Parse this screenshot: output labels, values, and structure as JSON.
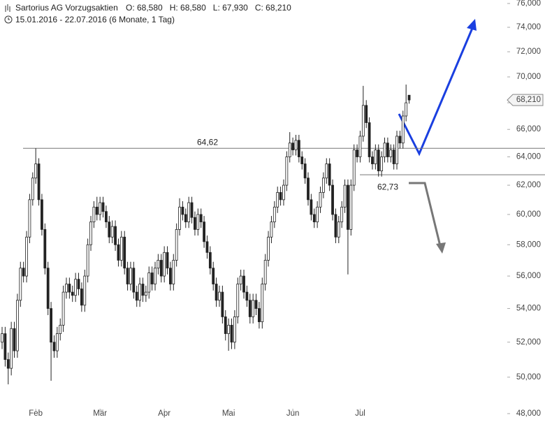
{
  "chart_data": {
    "type": "candlestick",
    "title": "Sartorius AG Vorzugsaktien",
    "quote_labels": [
      "O: 68,580",
      "H: 68,580",
      "L: 67,930",
      "C: 68,210"
    ],
    "subtitle": "15.01.2016 - 22.07.2016 (6 Monate, 1 Tag)",
    "log_scale": true,
    "ylim": [
      48,
      76
    ],
    "yticks": [
      {
        "value": 48,
        "label": "48,000"
      },
      {
        "value": 50,
        "label": "50,000"
      },
      {
        "value": 52,
        "label": "52,000"
      },
      {
        "value": 54,
        "label": "54,000"
      },
      {
        "value": 56,
        "label": "56,000"
      },
      {
        "value": 58,
        "label": "58,000"
      },
      {
        "value": 60,
        "label": "60,000"
      },
      {
        "value": 62,
        "label": "62,000"
      },
      {
        "value": 64,
        "label": "64,000"
      },
      {
        "value": 66,
        "label": "66,000"
      },
      {
        "value": 68,
        "label": "68,000"
      },
      {
        "value": 70,
        "label": "70,000"
      },
      {
        "value": 72,
        "label": "72,000"
      },
      {
        "value": 74,
        "label": "74,000"
      },
      {
        "value": 76,
        "label": "76,000"
      }
    ],
    "categories": [
      null,
      null,
      null,
      null,
      null,
      null,
      null,
      null,
      null,
      null,
      null,
      "Feb",
      null,
      null,
      null,
      null,
      null,
      null,
      null,
      null,
      null,
      null,
      null,
      null,
      null,
      null,
      null,
      null,
      null,
      null,
      null,
      null,
      "Mär",
      null,
      null,
      null,
      null,
      null,
      null,
      null,
      null,
      null,
      null,
      null,
      null,
      null,
      null,
      null,
      null,
      null,
      null,
      null,
      null,
      "Apr",
      null,
      null,
      null,
      null,
      null,
      null,
      null,
      null,
      null,
      null,
      null,
      null,
      null,
      null,
      null,
      null,
      null,
      null,
      null,
      null,
      "Mai",
      null,
      null,
      null,
      null,
      null,
      null,
      null,
      null,
      null,
      null,
      null,
      null,
      null,
      null,
      null,
      null,
      null,
      null,
      null,
      null,
      "Jun",
      null,
      null,
      null,
      null,
      null,
      null,
      null,
      null,
      null,
      null,
      null,
      null,
      null,
      null,
      null,
      null,
      null,
      null,
      null,
      null,
      null,
      "Jul",
      null,
      null,
      null,
      null,
      null,
      null,
      null,
      null,
      null,
      null,
      null,
      null,
      null,
      null,
      null,
      null
    ],
    "open": [
      52.0,
      52.5,
      51.0,
      50.5,
      52.8,
      51.5,
      54.5,
      56.5,
      56.0,
      58.5,
      61.0,
      62.5,
      63.5,
      61.0,
      59.0,
      56.5,
      54.0,
      52.0,
      51.5,
      52.5,
      53.0,
      55.0,
      55.5,
      55.0,
      54.8,
      55.8,
      55.2,
      54.2,
      56.0,
      58.0,
      59.5,
      60.5,
      60.0,
      60.8,
      60.2,
      59.5,
      58.5,
      59.2,
      58.0,
      57.0,
      58.5,
      56.5,
      55.5,
      56.5,
      55.0,
      54.5,
      55.5,
      54.8,
      55.0,
      56.2,
      55.5,
      56.5,
      57.0,
      56.0,
      57.5,
      56.5,
      55.5,
      57.0,
      59.0,
      60.5,
      60.0,
      59.5,
      60.8,
      59.8,
      59.0,
      60.0,
      59.5,
      58.2,
      57.5,
      56.5,
      55.5,
      54.5,
      55.0,
      53.5,
      52.5,
      53.0,
      52.0,
      53.5,
      55.5,
      56.0,
      55.0,
      54.5,
      53.5,
      54.5,
      54.0,
      53.2,
      55.5,
      57.0,
      58.5,
      59.5,
      60.5,
      61.5,
      61.0,
      62.0,
      64.0,
      65.0,
      64.5,
      65.2,
      64.0,
      63.5,
      62.5,
      61.0,
      60.0,
      59.5,
      60.5,
      61.5,
      62.5,
      63.5,
      62.0,
      60.0,
      58.5,
      59.5,
      60.5,
      62.0,
      59.0,
      62.0,
      64.5,
      64.0,
      65.5,
      67.8,
      66.5,
      64.0,
      63.5,
      64.5,
      63.0,
      64.0,
      65.0,
      64.0,
      64.5,
      63.5,
      65.5,
      65.0,
      67.0,
      68.58
    ],
    "high": [
      52.9,
      52.9,
      51.4,
      53.2,
      53.2,
      54.9,
      56.9,
      56.9,
      58.9,
      61.4,
      62.9,
      64.62,
      63.9,
      61.4,
      59.4,
      56.9,
      54.4,
      52.4,
      52.9,
      53.4,
      55.4,
      55.9,
      55.9,
      55.4,
      56.2,
      56.2,
      55.6,
      56.4,
      58.4,
      59.9,
      60.9,
      61.2,
      61.2,
      61.2,
      60.6,
      59.9,
      59.6,
      59.6,
      58.4,
      58.9,
      58.9,
      56.9,
      56.9,
      56.9,
      55.4,
      55.9,
      55.9,
      55.4,
      56.6,
      56.6,
      56.9,
      57.4,
      57.4,
      57.9,
      57.9,
      56.9,
      57.4,
      59.4,
      61.1,
      60.9,
      60.4,
      61.2,
      61.2,
      60.2,
      60.4,
      60.4,
      59.9,
      58.6,
      57.9,
      56.9,
      55.9,
      55.4,
      55.4,
      53.9,
      53.4,
      53.4,
      53.9,
      55.9,
      56.4,
      56.4,
      55.4,
      54.9,
      54.9,
      54.9,
      54.4,
      55.9,
      57.4,
      58.9,
      59.9,
      60.9,
      61.9,
      61.9,
      62.4,
      64.4,
      65.8,
      65.4,
      65.6,
      65.6,
      64.4,
      63.9,
      62.9,
      61.4,
      60.4,
      60.9,
      61.9,
      62.9,
      63.9,
      63.9,
      62.4,
      60.4,
      59.9,
      60.9,
      62.4,
      62.4,
      62.4,
      64.9,
      64.9,
      65.9,
      69.3,
      68.2,
      66.9,
      64.4,
      64.9,
      64.9,
      64.4,
      65.4,
      65.4,
      64.9,
      64.9,
      65.9,
      65.9,
      67.4,
      69.4,
      68.58
    ],
    "low": [
      51.6,
      50.6,
      49.6,
      50.1,
      51.1,
      51.1,
      54.1,
      55.6,
      55.6,
      58.1,
      60.6,
      62.1,
      60.6,
      58.6,
      56.1,
      53.6,
      49.8,
      51.1,
      51.1,
      52.1,
      52.6,
      54.6,
      54.6,
      54.4,
      54.4,
      54.8,
      53.8,
      53.8,
      55.6,
      57.6,
      59.1,
      59.6,
      59.6,
      59.8,
      59.1,
      58.1,
      58.1,
      57.6,
      56.6,
      56.6,
      56.1,
      55.1,
      55.1,
      54.6,
      54.1,
      54.1,
      54.4,
      54.4,
      54.6,
      55.1,
      55.1,
      56.1,
      55.6,
      55.6,
      56.1,
      55.1,
      55.1,
      56.6,
      58.6,
      59.6,
      59.1,
      59.1,
      59.4,
      58.6,
      58.6,
      59.1,
      57.8,
      57.1,
      56.1,
      55.1,
      54.1,
      54.1,
      53.1,
      52.1,
      51.5,
      51.6,
      51.6,
      53.1,
      55.1,
      54.6,
      54.1,
      53.1,
      53.1,
      53.6,
      52.8,
      52.8,
      55.1,
      56.6,
      58.1,
      59.1,
      60.1,
      60.6,
      60.6,
      61.6,
      63.6,
      64.1,
      64.1,
      63.6,
      63.1,
      62.1,
      60.6,
      59.6,
      59.1,
      59.1,
      60.1,
      61.1,
      62.1,
      61.6,
      59.6,
      58.1,
      58.1,
      59.1,
      60.1,
      56.1,
      58.6,
      61.6,
      63.6,
      63.6,
      65.1,
      66.1,
      63.6,
      63.1,
      63.1,
      62.6,
      62.6,
      63.6,
      63.6,
      63.6,
      63.1,
      63.1,
      64.6,
      64.6,
      66.6,
      67.93
    ],
    "close": [
      52.5,
      51.0,
      50.5,
      52.8,
      51.5,
      54.5,
      56.5,
      56.0,
      58.5,
      61.0,
      62.5,
      63.5,
      61.0,
      59.0,
      56.5,
      54.0,
      52.0,
      51.5,
      52.5,
      53.0,
      55.0,
      55.5,
      55.0,
      54.8,
      55.8,
      55.2,
      54.2,
      56.0,
      58.0,
      59.5,
      60.5,
      60.0,
      60.8,
      60.2,
      59.5,
      58.5,
      59.2,
      58.0,
      57.0,
      58.5,
      56.5,
      55.5,
      56.5,
      55.0,
      54.5,
      55.5,
      54.8,
      55.0,
      56.2,
      55.5,
      56.5,
      57.0,
      56.0,
      57.5,
      56.5,
      55.5,
      57.0,
      59.0,
      60.5,
      60.0,
      59.5,
      60.8,
      59.8,
      59.0,
      60.0,
      59.5,
      58.2,
      57.5,
      56.5,
      55.5,
      54.5,
      55.0,
      53.5,
      52.5,
      53.0,
      52.0,
      53.5,
      55.5,
      56.0,
      55.0,
      54.5,
      53.5,
      54.5,
      54.0,
      53.2,
      55.5,
      57.0,
      58.5,
      59.5,
      60.5,
      61.5,
      61.0,
      62.0,
      64.0,
      65.0,
      64.5,
      65.2,
      64.0,
      63.5,
      62.5,
      61.0,
      60.0,
      59.5,
      60.5,
      61.5,
      62.5,
      63.5,
      62.0,
      60.0,
      58.5,
      59.5,
      60.5,
      62.0,
      59.0,
      62.0,
      64.5,
      64.0,
      65.5,
      67.8,
      66.5,
      64.0,
      63.5,
      64.5,
      63.0,
      64.0,
      65.0,
      64.0,
      64.5,
      63.5,
      65.5,
      65.0,
      67.0,
      68.0,
      68.21
    ],
    "color": "#222222",
    "levels": [
      {
        "value": 64.62,
        "label": "64,62"
      },
      {
        "value": 62.73,
        "label": "62,73"
      }
    ],
    "last_price": {
      "value": 68.21,
      "label": "68,210"
    }
  }
}
